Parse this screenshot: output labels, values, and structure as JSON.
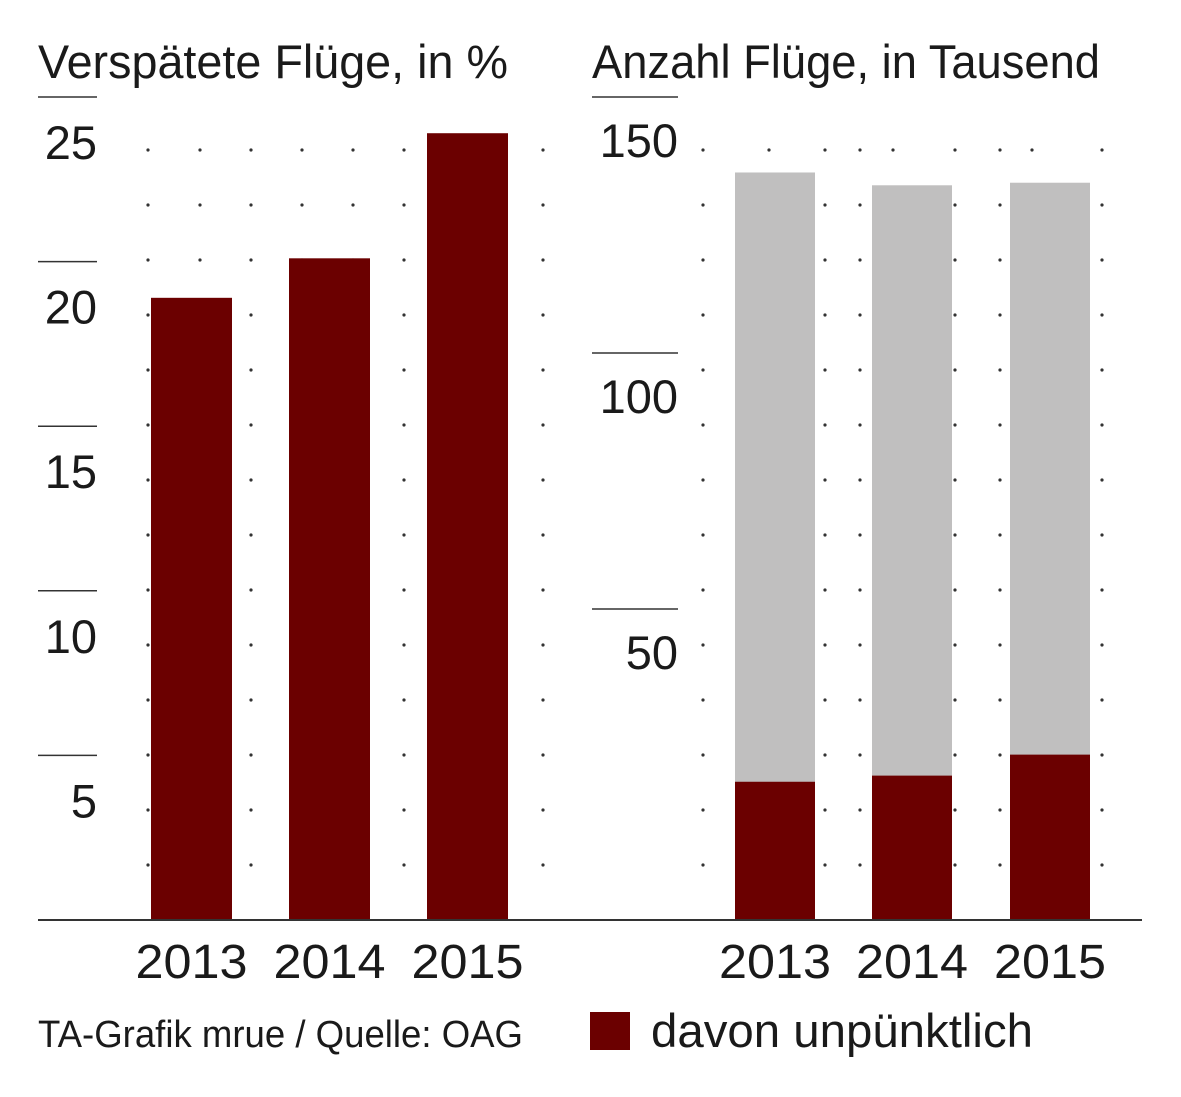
{
  "colors": {
    "late": "#6b0000",
    "total": "#c0bfbf",
    "grid": "#333333",
    "text": "#1a1a1a"
  },
  "chart_data": [
    {
      "type": "bar",
      "title": "Verspätete Flüge, in %",
      "categories": [
        "2013",
        "2014",
        "2015"
      ],
      "values": [
        18.9,
        20.1,
        23.9
      ],
      "ylim": [
        0,
        25
      ],
      "yticks": [
        "5",
        "10",
        "15",
        "20",
        "25"
      ],
      "grid": true
    },
    {
      "type": "bar",
      "title": "Anzahl Flüge, in Tausend",
      "categories": [
        "2013",
        "2014",
        "2015"
      ],
      "series": [
        {
          "values": [
            146,
            143.5,
            144
          ]
        },
        {
          "name": "davon unpünktlich",
          "values": [
            27,
            28.2,
            32.3
          ]
        }
      ],
      "ylim": [
        0,
        150
      ],
      "yticks": [
        "50",
        "100",
        "150"
      ],
      "grid": true,
      "legend": "bottom"
    }
  ],
  "footer": {
    "credit": "TA-Grafik mrue / Quelle: OAG"
  }
}
